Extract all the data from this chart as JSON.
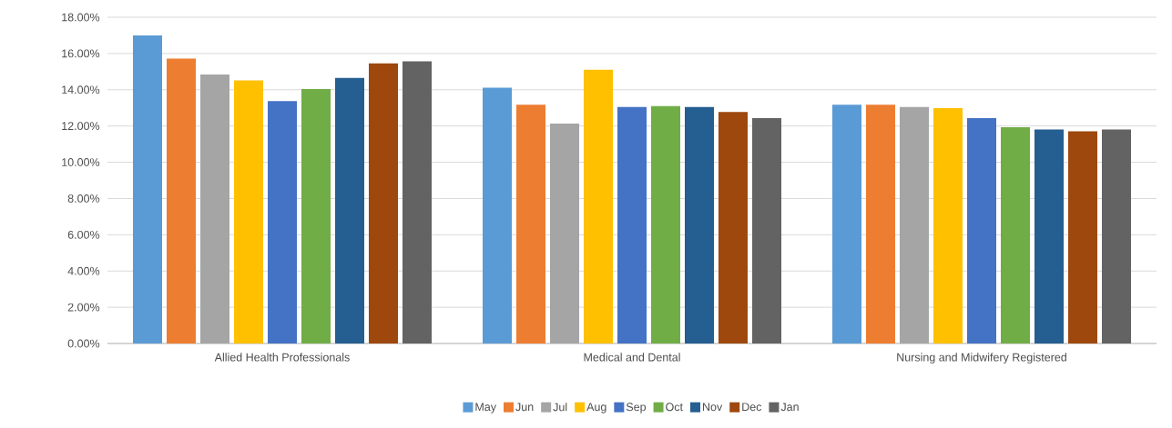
{
  "chart_data": {
    "type": "bar",
    "categories": [
      "Allied Health Professionals",
      "Medical and Dental",
      "Nursing and Midwifery Registered"
    ],
    "series": [
      {
        "name": "May",
        "color": "#5b9bd5",
        "values": [
          17.0,
          14.12,
          13.18
        ]
      },
      {
        "name": "Jun",
        "color": "#ed7d31",
        "values": [
          15.72,
          13.18,
          13.18
        ]
      },
      {
        "name": "Jul",
        "color": "#a5a5a5",
        "values": [
          14.84,
          12.13,
          13.05
        ]
      },
      {
        "name": "Aug",
        "color": "#ffc000",
        "values": [
          14.52,
          15.1,
          12.98
        ]
      },
      {
        "name": "Sep",
        "color": "#4472c4",
        "values": [
          13.38,
          13.05,
          12.43
        ]
      },
      {
        "name": "Oct",
        "color": "#70ad47",
        "values": [
          14.04,
          13.1,
          11.93
        ]
      },
      {
        "name": "Nov",
        "color": "#255e91",
        "values": [
          14.65,
          13.05,
          11.81
        ]
      },
      {
        "name": "Dec",
        "color": "#9e480e",
        "values": [
          15.45,
          12.77,
          11.71
        ]
      },
      {
        "name": "Jan",
        "color": "#636363",
        "values": [
          15.57,
          12.43,
          11.81
        ]
      }
    ],
    "ylim": [
      0,
      18
    ],
    "yticks": [
      {
        "value": 0,
        "label": "0.00%"
      },
      {
        "value": 2,
        "label": "2.00%"
      },
      {
        "value": 4,
        "label": "4.00%"
      },
      {
        "value": 6,
        "label": "6.00%"
      },
      {
        "value": 8,
        "label": "8.00%"
      },
      {
        "value": 10,
        "label": "10.00%"
      },
      {
        "value": 12,
        "label": "12.00%"
      },
      {
        "value": 14,
        "label": "14.00%"
      },
      {
        "value": 16,
        "label": "16.00%"
      },
      {
        "value": 18,
        "label": "18.00%"
      }
    ],
    "grid": "y",
    "legend": "bottom"
  }
}
